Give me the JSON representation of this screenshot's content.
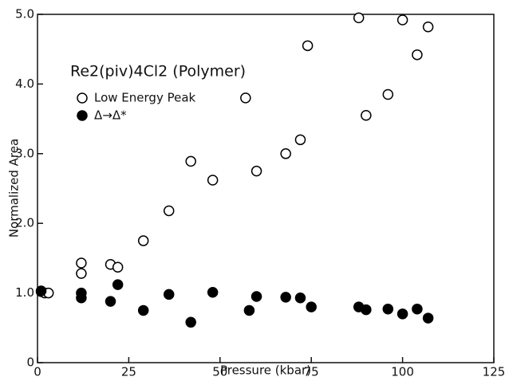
{
  "chart_data": {
    "type": "scatter",
    "annotation": "Re2(piv)4Cl2 (Polymer)",
    "x_label": "Pressure (kbar)",
    "y_label": "Normalized Area",
    "xlim": [
      0,
      125
    ],
    "xticks": [
      0,
      25,
      50,
      75,
      100,
      125
    ],
    "ylim": [
      0,
      5
    ],
    "yticks": [
      0,
      {
        "value": 1,
        "label": "1.0"
      },
      {
        "value": 2,
        "label": "2.0"
      },
      {
        "value": 3,
        "label": "3.0"
      },
      {
        "value": 4,
        "label": "4.0"
      },
      {
        "value": 5,
        "label": "5.0"
      }
    ],
    "series": [
      {
        "name": "Low Energy Peak",
        "color": "#000000",
        "filled": false,
        "x": [
          1,
          2,
          3,
          12,
          12,
          20,
          22,
          29,
          36,
          42,
          48,
          57,
          60,
          68,
          72,
          74,
          88,
          90,
          96,
          100,
          104,
          107
        ],
        "values": [
          1.02,
          1.0,
          1.0,
          1.43,
          1.28,
          1.41,
          1.37,
          1.75,
          2.18,
          2.89,
          2.62,
          3.8,
          2.75,
          3.0,
          3.2,
          4.55,
          4.95,
          3.55,
          3.85,
          4.92,
          4.42,
          4.82
        ]
      },
      {
        "name": "Δ→Δ*",
        "color": "#000000",
        "filled": true,
        "x": [
          1,
          12,
          12,
          20,
          22,
          29,
          36,
          42,
          48,
          58,
          60,
          68,
          72,
          75,
          88,
          90,
          96,
          100,
          104,
          107
        ],
        "values": [
          1.03,
          0.93,
          1.0,
          0.88,
          1.12,
          0.75,
          0.98,
          0.58,
          1.01,
          0.75,
          0.95,
          0.94,
          0.93,
          0.8,
          0.8,
          0.76,
          0.77,
          0.7,
          0.77,
          0.64
        ]
      }
    ]
  }
}
